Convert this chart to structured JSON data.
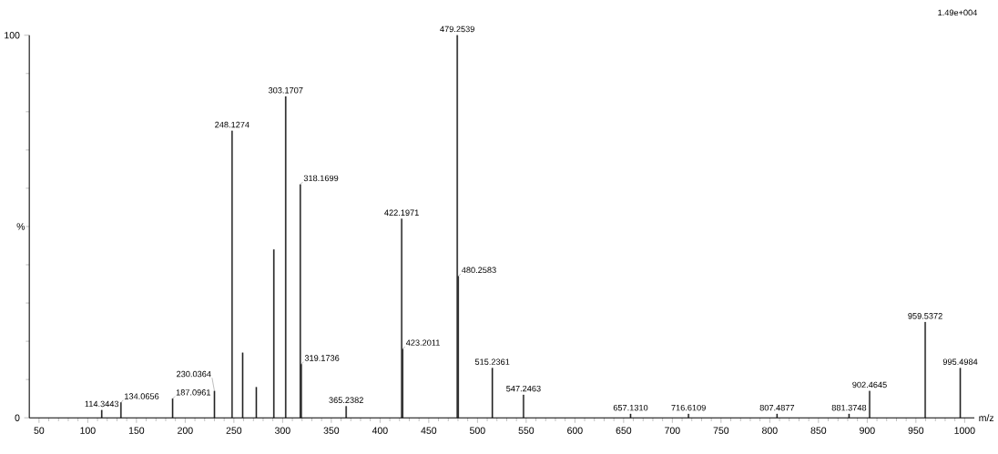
{
  "chart_data": {
    "type": "bar",
    "xlabel": "m/z",
    "ylabel": "%",
    "annotations": [
      "1.49e+004",
      {
        "text": "114.3443",
        "x": 114.3443,
        "y": 2
      },
      {
        "text": "134.0656",
        "x": 134.0656,
        "y": 4
      },
      {
        "text": "187.0961",
        "x": 187.0961,
        "y": 5
      },
      {
        "text": "230.0364",
        "x": 230.0364,
        "y": 7
      },
      {
        "text": "248.1274",
        "x": 248.1274,
        "y": 75
      },
      {
        "text": "303.1707",
        "x": 303.1707,
        "y": 84
      },
      {
        "text": "318.1699",
        "x": 318.1699,
        "y": 61
      },
      {
        "text": "319.1736",
        "x": 319.1736,
        "y": 14
      },
      {
        "text": "365.2382",
        "x": 365.2382,
        "y": 3
      },
      {
        "text": "422.1971",
        "x": 422.1971,
        "y": 52
      },
      {
        "text": "423.2011",
        "x": 423.2011,
        "y": 18
      },
      {
        "text": "479.2539",
        "x": 479.2539,
        "y": 100
      },
      {
        "text": "480.2583",
        "x": 480.2583,
        "y": 37
      },
      {
        "text": "515.2361",
        "x": 515.2361,
        "y": 13
      },
      {
        "text": "547.2463",
        "x": 547.2463,
        "y": 6
      },
      {
        "text": "657.1310",
        "x": 657.131,
        "y": 1
      },
      {
        "text": "716.6109",
        "x": 716.6109,
        "y": 1
      },
      {
        "text": "807.4877",
        "x": 807.4877,
        "y": 1
      },
      {
        "text": "881.3748",
        "x": 881.3748,
        "y": 1
      },
      {
        "text": "902.4645",
        "x": 902.4645,
        "y": 7
      },
      {
        "text": "959.5372",
        "x": 959.5372,
        "y": 25
      },
      {
        "text": "995.4984",
        "x": 995.4984,
        "y": 13
      }
    ],
    "x": [
      114.3443,
      134.0656,
      187.0961,
      230.0364,
      248.1274,
      259,
      273,
      291,
      303.1707,
      318.1699,
      319.1736,
      365.2382,
      422.1971,
      423.2011,
      479.2539,
      480.2583,
      515.2361,
      547.2463,
      657.131,
      716.6109,
      807.4877,
      881.3748,
      902.4645,
      959.5372,
      995.4984
    ],
    "values": [
      2,
      4,
      5,
      7,
      75,
      17,
      8,
      44,
      84,
      61,
      14,
      3,
      52,
      18,
      100,
      37,
      13,
      6,
      1,
      1,
      1,
      1,
      7,
      25,
      13
    ],
    "color": "#222222",
    "xlim": [
      40,
      1010
    ],
    "ylim": [
      0,
      100
    ],
    "xticks": [
      50,
      100,
      150,
      200,
      250,
      300,
      350,
      400,
      450,
      500,
      550,
      600,
      650,
      700,
      750,
      800,
      850,
      900,
      950,
      1000
    ],
    "yticks": [
      0,
      100
    ]
  }
}
